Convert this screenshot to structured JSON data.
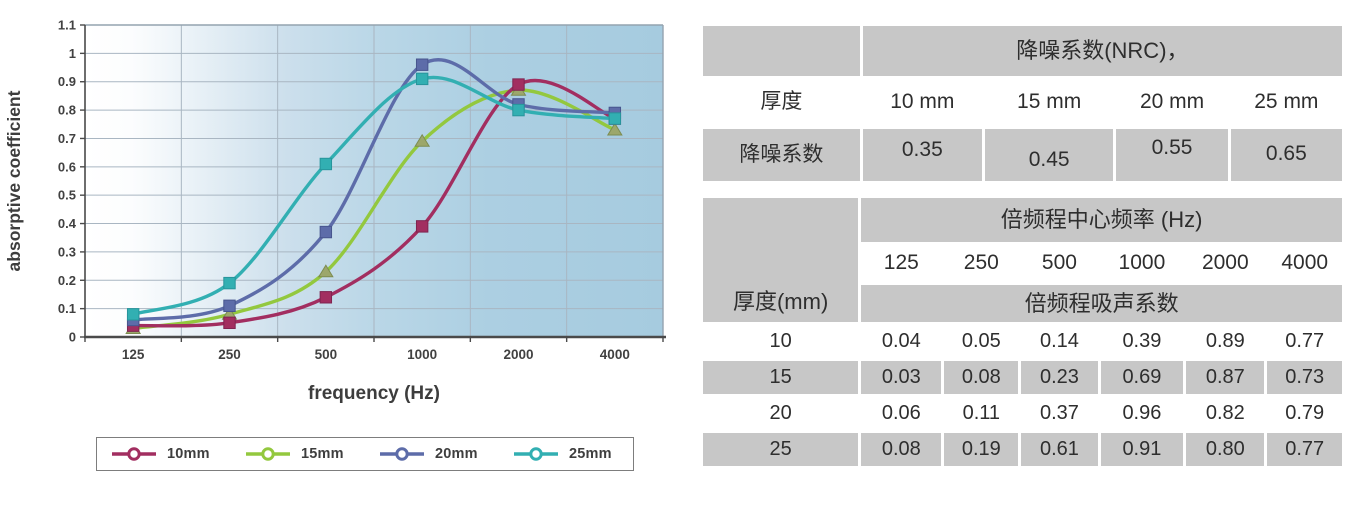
{
  "chart_data": {
    "type": "line",
    "smooth": true,
    "title": "",
    "xlabel": "frequency (Hz)",
    "ylabel": "absorptive coefficient",
    "x_categories": [
      "125",
      "250",
      "500",
      "1000",
      "2000",
      "4000"
    ],
    "ylim": [
      0,
      1.1
    ],
    "ytick_step": 0.1,
    "ytick_labels": [
      "0",
      "0.1",
      "0.2",
      "0.3",
      "0.4",
      "0.5",
      "0.6",
      "0.7",
      "0.8",
      "0.9",
      "1",
      "1.1"
    ],
    "grid": true,
    "legend_position": "bottom",
    "plot_bg_gradient": [
      "#ffffff",
      "#fcfdfe",
      "#e7f0f6",
      "#ccdfec",
      "#bad7e7",
      "#accfe2",
      "#a6cbdf"
    ],
    "gridline_color": "#a9b6c2",
    "axis_color": "#4a4a4a",
    "border_color": "#94a3af",
    "series": [
      {
        "name": "10mm",
        "color": "#a22e60",
        "marker": "square",
        "marker_fill": "#a22e60",
        "marker_stroke": "#7f2450",
        "values": [
          0.04,
          0.05,
          0.14,
          0.39,
          0.89,
          0.77
        ]
      },
      {
        "name": "15mm",
        "color": "#93c83e",
        "marker": "triangle",
        "marker_fill": "#9ca76b",
        "marker_stroke": "#7c8c51",
        "values": [
          0.03,
          0.08,
          0.23,
          0.69,
          0.87,
          0.73
        ]
      },
      {
        "name": "20mm",
        "color": "#5d6ca9",
        "marker": "square",
        "marker_fill": "#5d6ca9",
        "marker_stroke": "#47558e",
        "values": [
          0.06,
          0.11,
          0.37,
          0.96,
          0.82,
          0.79
        ]
      },
      {
        "name": "25mm",
        "color": "#32afb2",
        "marker": "square",
        "marker_fill": "#32afb2",
        "marker_stroke": "#27949b",
        "values": [
          0.08,
          0.19,
          0.61,
          0.91,
          0.8,
          0.77
        ]
      }
    ],
    "draw_order": [
      1,
      0,
      2,
      3
    ]
  },
  "tables": {
    "nrc": {
      "title": "降噪系数(NRC)，",
      "col1_header": "厚度",
      "thickness_labels": [
        "10 mm",
        "15 mm",
        "20 mm",
        "25 mm"
      ],
      "row_header": "降噪系数",
      "values": [
        "0.35",
        "0.45",
        "0.55",
        "0.65"
      ]
    },
    "octave": {
      "corner_header": "厚度(mm)",
      "title": "倍频程中心频率 (Hz)",
      "freq_headers": [
        "125",
        "250",
        "500",
        "1000",
        "2000",
        "4000"
      ],
      "subtitle": "倍频程吸声系数",
      "rows": [
        {
          "thickness": "10",
          "values": [
            "0.04",
            "0.05",
            "0.14",
            "0.39",
            "0.89",
            "0.77"
          ]
        },
        {
          "thickness": "15",
          "values": [
            "0.03",
            "0.08",
            "0.23",
            "0.69",
            "0.87",
            "0.73"
          ]
        },
        {
          "thickness": "20",
          "values": [
            "0.06",
            "0.11",
            "0.37",
            "0.96",
            "0.82",
            "0.79"
          ]
        },
        {
          "thickness": "25",
          "values": [
            "0.08",
            "0.19",
            "0.61",
            "0.91",
            "0.80",
            "0.77"
          ]
        }
      ]
    }
  },
  "colors": {
    "table_cell_gray": "#c7c7c7",
    "text_dark": "#2e2e2e",
    "legend_border": "#7d7d7d"
  }
}
